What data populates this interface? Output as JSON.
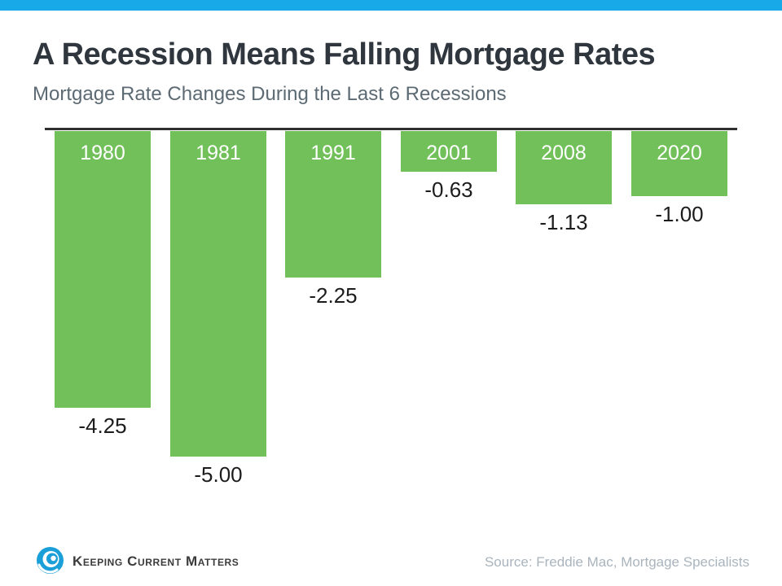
{
  "page": {
    "title": "A Recession Means Falling Mortgage Rates",
    "subtitle": "Mortgage Rate Changes During the Last 6 Recessions",
    "accent_bar_color": "#18A9E8"
  },
  "chart_data": {
    "type": "bar",
    "title": "A Recession Means Falling Mortgage Rates",
    "subtitle": "Mortgage Rate Changes During the Last 6 Recessions",
    "categories": [
      "1980",
      "1981",
      "1991",
      "2001",
      "2008",
      "2020"
    ],
    "values": [
      -4.25,
      -5.0,
      -2.25,
      -0.63,
      -1.13,
      -1.0
    ],
    "value_labels": [
      "-4.25",
      "-5.00",
      "-2.25",
      "-0.63",
      "-1.13",
      "-1.00"
    ],
    "bar_color": "#71C05A",
    "baseline_color": "#2F2F2F",
    "category_label_color": "#FFFFFF",
    "value_label_color": "#1C1C1C",
    "orientation": "vertical-down",
    "ylim": [
      -5.5,
      0
    ],
    "gridlines": false,
    "legend": false,
    "category_label_position": "inside-bar-top",
    "value_label_position": "below-bar"
  },
  "footer": {
    "logo_text": "Keeping Current Matters",
    "logo_icon": "swirl-wave-icon",
    "logo_color": "#1B9FD8",
    "source": "Source: Freddie Mac, Mortgage Specialists"
  }
}
